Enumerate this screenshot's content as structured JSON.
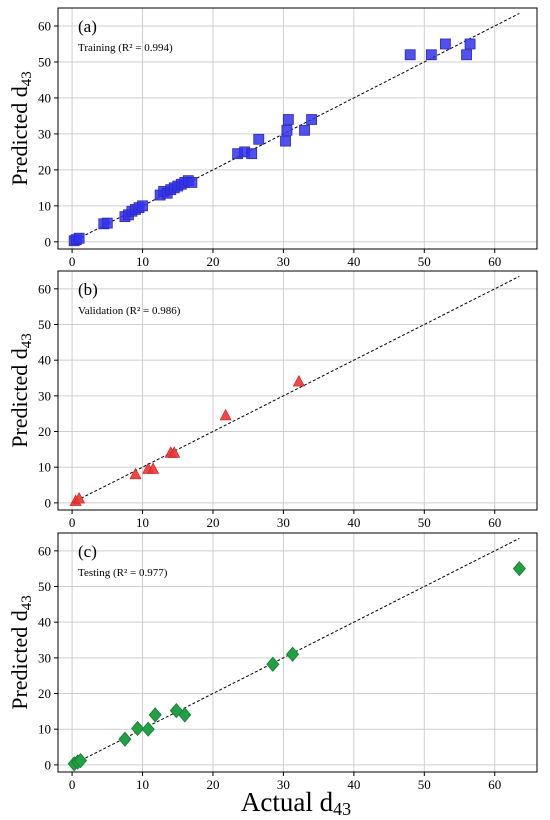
{
  "xlabel": "Actual d",
  "xlabel_sub": "43",
  "chart_data": [
    {
      "type": "scatter",
      "panel_label": "(a)",
      "annotation": "Training (R² = 0.994)",
      "ylabel": "Predicted d",
      "ylabel_sub": "43",
      "xlim": [
        -2,
        66
      ],
      "ylim": [
        -2,
        65
      ],
      "xticks": [
        0,
        10,
        20,
        30,
        40,
        50,
        60
      ],
      "yticks": [
        0,
        10,
        20,
        30,
        40,
        50,
        60
      ],
      "grid": true,
      "marker": "square",
      "color": "#3333ee",
      "reference_line": [
        [
          0,
          0
        ],
        [
          63.5,
          63.5
        ]
      ],
      "series": [
        {
          "x": [
            0.3,
            0.6,
            1.0,
            4.5,
            5.0,
            7.5,
            8.0,
            8.5,
            9.0,
            9.5,
            10.0,
            12.5,
            13.0,
            13.5,
            14.0,
            14.5,
            15.0,
            15.5,
            16.0,
            16.5,
            17.0,
            23.5,
            24.5,
            25.5,
            26.5,
            30.3,
            30.5,
            30.7,
            33.0,
            34.0,
            48.0,
            51.0,
            53.0,
            56.0,
            56.5
          ],
          "y": [
            0.3,
            0.6,
            1.0,
            5.0,
            5.2,
            7.0,
            7.5,
            8.5,
            9.0,
            9.5,
            10.0,
            13.0,
            14.0,
            13.5,
            14.5,
            15.0,
            15.5,
            16.0,
            16.5,
            17.0,
            16.5,
            24.5,
            25.0,
            24.5,
            28.5,
            28.0,
            31.0,
            34.0,
            31.0,
            34.0,
            52.0,
            52.0,
            55.0,
            52.0,
            55.0
          ]
        }
      ]
    },
    {
      "type": "scatter",
      "panel_label": "(b)",
      "annotation": "Validation (R² = 0.986)",
      "ylabel": "Predicted d",
      "ylabel_sub": "43",
      "xlim": [
        -2,
        66
      ],
      "ylim": [
        -2,
        65
      ],
      "xticks": [
        0,
        10,
        20,
        30,
        40,
        50,
        60
      ],
      "yticks": [
        0,
        10,
        20,
        30,
        40,
        50,
        60
      ],
      "grid": true,
      "marker": "triangle",
      "color": "#ee3333",
      "reference_line": [
        [
          0,
          0
        ],
        [
          63.5,
          63.5
        ]
      ],
      "series": [
        {
          "x": [
            0.5,
            1.0,
            9.0,
            10.8,
            11.5,
            14.0,
            14.5,
            21.8,
            32.2
          ],
          "y": [
            0.5,
            1.2,
            8.0,
            9.5,
            9.5,
            14.0,
            14.0,
            24.5,
            34.0
          ]
        }
      ]
    },
    {
      "type": "scatter",
      "panel_label": "(c)",
      "annotation": "Testing (R² = 0.977)",
      "ylabel": "Predicted d",
      "ylabel_sub": "43",
      "xlim": [
        -2,
        66
      ],
      "ylim": [
        -2,
        65
      ],
      "xticks": [
        0,
        10,
        20,
        30,
        40,
        50,
        60
      ],
      "yticks": [
        0,
        10,
        20,
        30,
        40,
        50,
        60
      ],
      "grid": true,
      "marker": "diamond",
      "color": "#22a045",
      "reference_line": [
        [
          0,
          0
        ],
        [
          63.5,
          63.5
        ]
      ],
      "series": [
        {
          "x": [
            0.3,
            0.8,
            1.2,
            7.5,
            9.3,
            10.8,
            11.8,
            14.8,
            16.0,
            28.5,
            31.3,
            63.5
          ],
          "y": [
            0.3,
            0.8,
            1.2,
            7.2,
            10.2,
            10.0,
            14.0,
            15.2,
            14.0,
            28.2,
            31.0,
            55.0
          ]
        }
      ]
    }
  ]
}
